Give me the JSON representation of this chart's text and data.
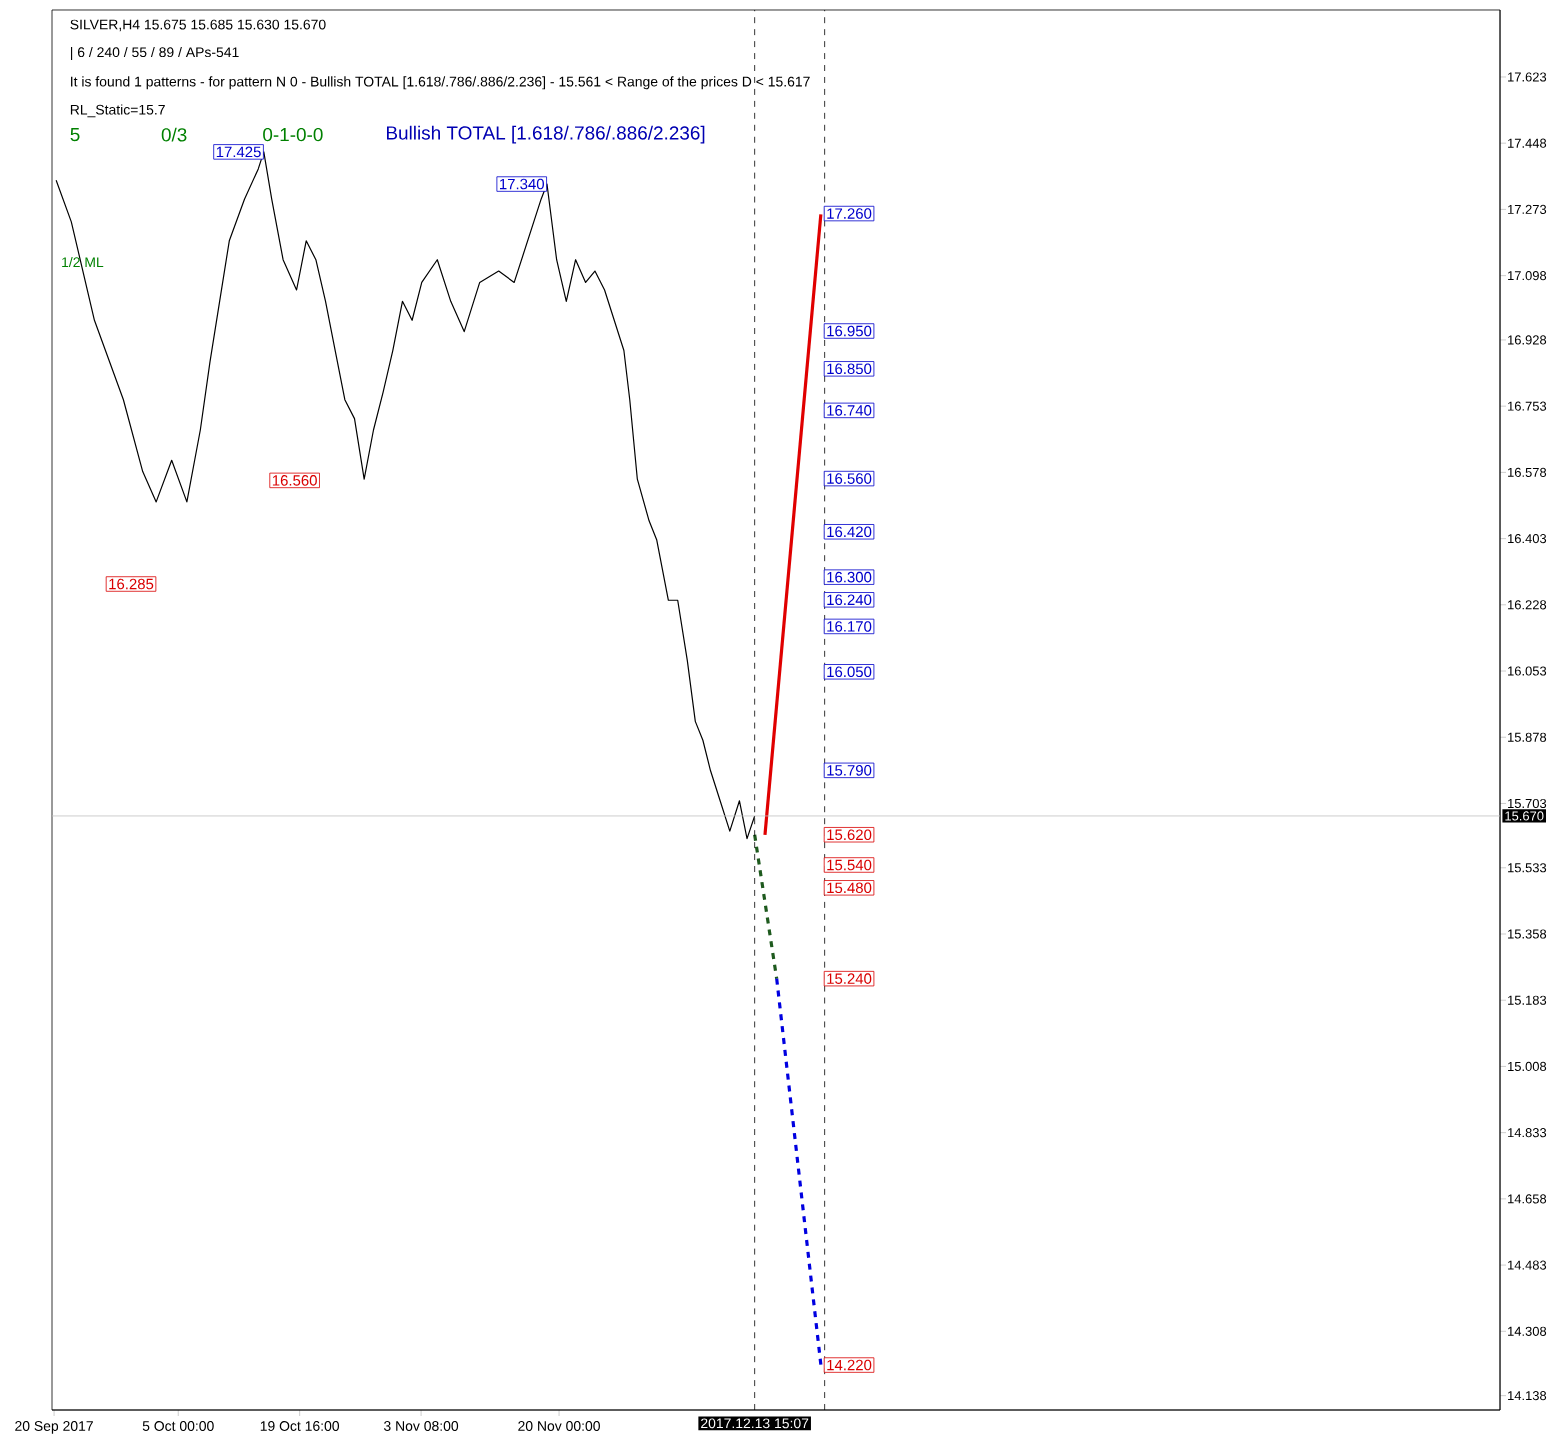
{
  "chart_data": {
    "type": "line",
    "title": "Bullish TOTAL [1.618/.786/.886/2.236]",
    "x": [
      "2017-09-20T06:00",
      "2017-09-22T02:00",
      "2017-09-24T21:00",
      "2017-09-28T09:00",
      "2017-09-30T17:00",
      "2017-10-02T08:00",
      "2017-10-04T05:00",
      "2017-10-06T01:00",
      "2017-10-07T16:00",
      "2017-10-08T20:00",
      "2017-10-10T00:00",
      "2017-10-11T04:00",
      "2017-10-13T00:00",
      "2017-10-14T16:00",
      "2017-10-15T08:00",
      "2017-10-16T07:00",
      "2017-10-17T16:00",
      "2017-10-19T07:00",
      "2017-10-20T11:00",
      "2017-10-21T15:00",
      "2017-10-22T19:00",
      "2017-10-23T23:00",
      "2017-10-25T03:00",
      "2017-10-26T07:00",
      "2017-10-27T11:00",
      "2017-10-28T14:00",
      "2017-10-29T18:00",
      "2017-10-30T22:00",
      "2017-11-01T02:00",
      "2017-11-02T06:00",
      "2017-11-03T10:00",
      "2017-11-05T07:00",
      "2017-11-06T22:00",
      "2017-11-08T13:00",
      "2017-11-10T10:00",
      "2017-11-12T17:00",
      "2017-11-14T14:00",
      "2017-11-16T05:00",
      "2017-11-17T20:00",
      "2017-11-18T13:00",
      "2017-11-19T17:00",
      "2017-11-20T21:00",
      "2017-11-22T00:00",
      "2017-11-23T05:00",
      "2017-11-24T08:00",
      "2017-11-25T12:00",
      "2017-11-26T16:00",
      "2017-11-27T20:00",
      "2017-11-28T13:00",
      "2017-11-29T11:00",
      "2017-11-30T21:00",
      "2017-12-01T19:00",
      "2017-12-03T05:00",
      "2017-12-04T08:00",
      "2017-12-05T12:00",
      "2017-12-06T11:00",
      "2017-12-07T09:00",
      "2017-12-08T07:00",
      "2017-12-09T11:00",
      "2017-12-10T15:00",
      "2017-12-11T19:00",
      "2017-12-12T17:00",
      "2017-12-13T15:07"
    ],
    "series": [
      {
        "color": "#000000",
        "values": [
          17.35,
          17.24,
          16.98,
          16.77,
          16.58,
          16.5,
          16.61,
          16.5,
          16.69,
          16.87,
          17.03,
          17.19,
          17.3,
          17.38,
          17.425,
          17.3,
          17.14,
          17.06,
          17.19,
          17.14,
          17.03,
          16.9,
          16.77,
          16.72,
          16.56,
          16.69,
          16.79,
          16.9,
          17.03,
          16.98,
          17.08,
          17.14,
          17.03,
          16.95,
          17.08,
          17.11,
          17.08,
          17.19,
          17.3,
          17.34,
          17.14,
          17.03,
          17.14,
          17.08,
          17.11,
          17.06,
          16.98,
          16.9,
          16.77,
          16.56,
          16.45,
          16.4,
          16.24,
          16.24,
          16.08,
          15.92,
          15.87,
          15.79,
          15.71,
          15.63,
          15.71,
          15.61,
          15.67
        ]
      },
      {
        "color": "#e00000",
        "x": [
          "2017-12-14T21:00",
          "2017-12-21T15:00"
        ],
        "values": [
          15.62,
          17.26
        ],
        "line_style": "solid"
      },
      {
        "color": "#1e5a1e",
        "x": [
          "2017-12-13T15:07",
          "2017-12-16T07:00"
        ],
        "values": [
          15.62,
          15.24
        ],
        "line_style": "dashed"
      },
      {
        "color": "#0000e0",
        "x": [
          "2017-12-16T07:00",
          "2017-12-21T15:00"
        ],
        "values": [
          15.24,
          14.22
        ],
        "line_style": "dashed"
      }
    ],
    "xlim": [
      "2017-09-19T18:00",
      "2018-03-13T16:00"
    ],
    "ylim": [
      14.1,
      17.8
    ],
    "xticks": [
      {
        "value": "2017-09-20",
        "label": "20 Sep 2017"
      },
      {
        "value": "2017-10-05T00:00",
        "label": "5 Oct 00:00"
      },
      {
        "value": "2017-10-19T16:00",
        "label": "19 Oct 16:00"
      },
      {
        "value": "2017-11-03T08:00",
        "label": "3 Nov 08:00"
      },
      {
        "value": "2017-11-20T00:00",
        "label": "20 Nov 00:00"
      }
    ],
    "yticks": [
      17.623,
      17.448,
      17.273,
      17.098,
      16.928,
      16.753,
      16.578,
      16.403,
      16.228,
      16.053,
      15.878,
      15.703,
      15.533,
      15.358,
      15.183,
      15.008,
      14.833,
      14.658,
      14.483,
      14.308,
      14.138
    ],
    "ref_lines": [
      {
        "axis": "y",
        "value": 15.67,
        "label": "15.670",
        "color": "#c0c0c0"
      },
      {
        "axis": "x",
        "value": "2017-12-13T15:07",
        "label": "2017.12.13 15:07",
        "line_style": "dashed"
      },
      {
        "axis": "x",
        "value": "2017-12-22T02:00",
        "line_style": "dashed"
      }
    ],
    "marker": "none",
    "annotations": [
      "SILVER,H4  15.675 15.685 15.630 15.670",
      "| 6 / 240 / 55 / 89 / APs-541",
      "It is found 1 patterns  -  for pattern N 0 - Bullish TOTAL [1.618/.786/.886/2.236] - 15.561 < Range of the prices D < 15.617",
      "RL_Static=15.7",
      "5",
      "0/3",
      "0-1-0-0",
      "1/2 ML",
      {
        "text": "17.425",
        "x": "2017-10-15T08:00",
        "y": 17.425
      },
      {
        "text": "17.340",
        "x": "2017-11-18T13:00",
        "y": 17.34
      },
      "16.560",
      "16.285",
      "17.260",
      "16.950",
      "16.850",
      "16.740",
      "16.560",
      "16.420",
      "16.300",
      "16.240",
      "16.170",
      "16.050",
      "15.790",
      "15.620",
      "15.540",
      "15.480",
      "15.240",
      "14.220"
    ]
  }
}
